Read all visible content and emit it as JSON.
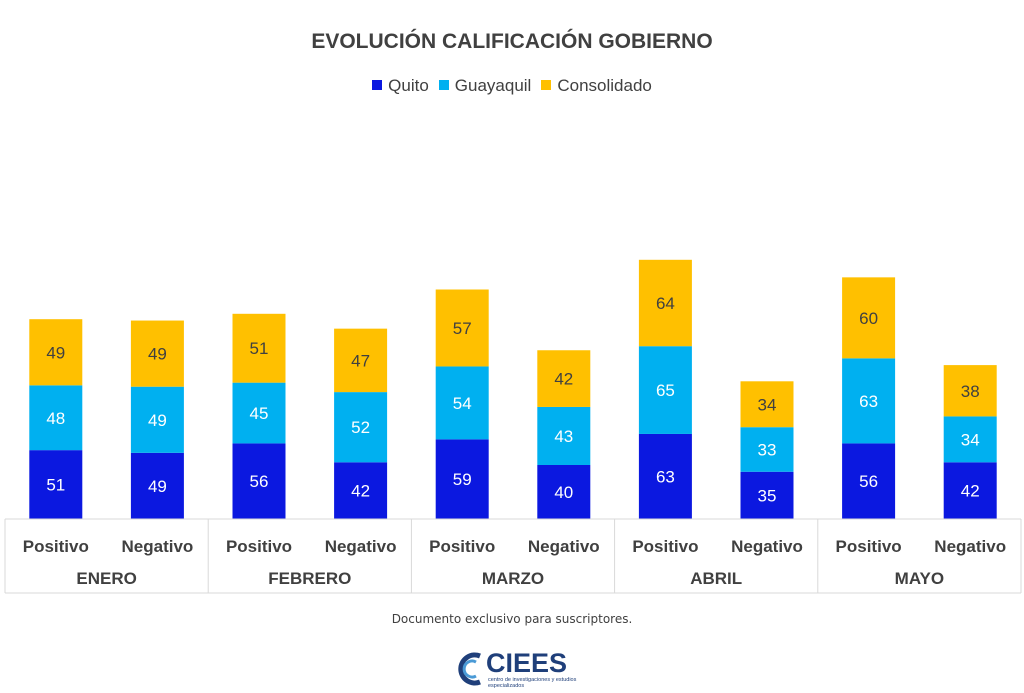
{
  "chart_data": {
    "type": "bar",
    "stacked": true,
    "title": "EVOLUCIÓN CALIFICACIÓN GOBIERNO",
    "legend_position": "top",
    "grid": false,
    "series": [
      {
        "name": "Quito",
        "color": "#0B18E0",
        "values": [
          51,
          49,
          56,
          42,
          59,
          40,
          63,
          35,
          56,
          42
        ]
      },
      {
        "name": "Guayaquil",
        "color": "#00B0F0",
        "values": [
          48,
          49,
          45,
          52,
          54,
          43,
          65,
          33,
          63,
          34
        ]
      },
      {
        "name": "Consolidado",
        "color": "#FFC000",
        "values": [
          49,
          49,
          51,
          47,
          57,
          42,
          64,
          34,
          60,
          38
        ]
      }
    ],
    "categories": [
      "Positivo",
      "Negativo",
      "Positivo",
      "Negativo",
      "Positivo",
      "Negativo",
      "Positivo",
      "Negativo",
      "Positivo",
      "Negativo"
    ],
    "groups": [
      "ENERO",
      "FEBRERO",
      "MARZO",
      "ABRIL",
      "MAYO"
    ],
    "ylim": [
      0,
      200
    ]
  },
  "footer": {
    "note": "Documento exclusivo para suscriptores.",
    "logo_text": "CIEES",
    "logo_subtext": "centro de investigaciones y estudios especializados"
  }
}
